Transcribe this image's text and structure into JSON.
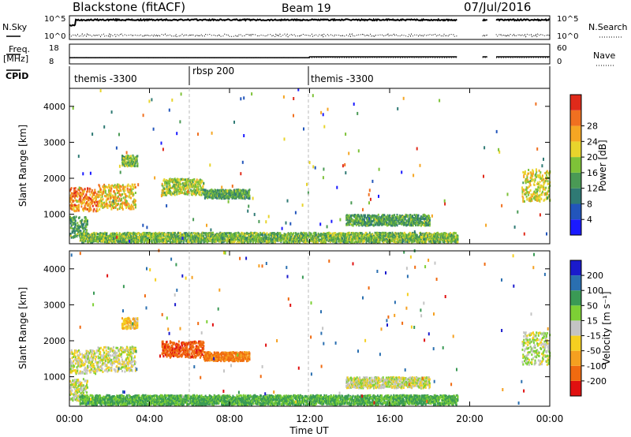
{
  "header": {
    "site": "Blackstone (fitACF)",
    "beam": "Beam 19",
    "date": "07/Jul/2016"
  },
  "top_panels": {
    "nsky_label": "N.Sky",
    "nsearch_label": "N.Search",
    "freq_label_1": "Freq.",
    "freq_label_2": "[MHz]",
    "nave_label": "Nave",
    "cpid_label": "CPID",
    "nsky_ticks": [
      "10^5",
      "10^0"
    ],
    "nsearch_ticks": [
      "10^5",
      "10^0"
    ],
    "freq_ticks": [
      "18",
      "8"
    ],
    "nave_ticks": [
      "60",
      "0"
    ]
  },
  "cpid": [
    {
      "label": "themis -3300",
      "start": 0
    },
    {
      "label": "rbsp 200",
      "start": 6
    },
    {
      "label": "themis -3300",
      "start": 12
    }
  ],
  "x_axis": {
    "label": "Time UT",
    "ticks": [
      "00:00",
      "04:00",
      "08:00",
      "12:00",
      "16:00",
      "20:00",
      "00:00"
    ],
    "range_hours": [
      0,
      24
    ]
  },
  "y_axis": {
    "label": "Slant Range [km]",
    "ticks": [
      "1000",
      "2000",
      "3000",
      "4000"
    ],
    "range_km": [
      180,
      4500
    ]
  },
  "power_scale": {
    "label": "Power [dB]",
    "ticks": [
      "4",
      "8",
      "12",
      "16",
      "20",
      "24",
      "28"
    ],
    "colors": [
      "#1a1aff",
      "#2255bb",
      "#2f7a74",
      "#4a9a55",
      "#7ec238",
      "#e8d42c",
      "#f5a623",
      "#f07020",
      "#e02a1a"
    ]
  },
  "velocity_scale": {
    "label": "Velocity [m s⁻¹]",
    "ticks": [
      "200",
      "100",
      "50",
      "15",
      "-15",
      "-50",
      "-100",
      "-200"
    ],
    "colors": [
      "#1a1acc",
      "#2a6fb0",
      "#3a9a55",
      "#7dd035",
      "#c4c4c4",
      "#f5d020",
      "#f5a020",
      "#f06a10",
      "#e01010"
    ]
  },
  "chart_data": {
    "type": "heatmap",
    "title": "Blackstone (fitACF) Beam 19 07/Jul/2016",
    "x_label": "Time UT",
    "y_label": "Slant Range [km]",
    "xlim_hours": [
      0,
      24
    ],
    "ylim_km": [
      180,
      4500
    ],
    "power_db_range": [
      0,
      30
    ],
    "velocity_range": [
      -250,
      250
    ],
    "data_gaps_hours": [
      [
        19.4,
        20.6
      ],
      [
        20.9,
        21.3
      ]
    ],
    "echo_regions": [
      {
        "name": "band-a",
        "t0": 0.0,
        "t1": 1.4,
        "r0": 1050,
        "r1": 1700,
        "power": 24,
        "velocity": -10
      },
      {
        "name": "band-b",
        "t0": 1.4,
        "t1": 3.3,
        "r0": 1100,
        "r1": 1800,
        "power": 20,
        "velocity": -5
      },
      {
        "name": "band-c",
        "t0": 0.0,
        "t1": 0.9,
        "r0": 300,
        "r1": 900,
        "power": 12,
        "velocity": 0
      },
      {
        "name": "patch-d",
        "t0": 2.6,
        "t1": 3.4,
        "r0": 2300,
        "r1": 2600,
        "power": 14,
        "velocity": -40
      },
      {
        "name": "band-e",
        "t0": 4.6,
        "t1": 6.7,
        "r0": 1500,
        "r1": 1950,
        "power": 16,
        "velocity": -180
      },
      {
        "name": "band-f",
        "t0": 6.7,
        "t1": 9.0,
        "r0": 1400,
        "r1": 1650,
        "power": 12,
        "velocity": -110
      },
      {
        "name": "band-g",
        "t0": 13.8,
        "t1": 18.0,
        "r0": 650,
        "r1": 950,
        "power": 12,
        "velocity": 0
      },
      {
        "name": "band-h",
        "t0": 22.6,
        "t1": 24.0,
        "r0": 1300,
        "r1": 2200,
        "power": 18,
        "velocity": 10
      },
      {
        "name": "ground-scatter",
        "t0": 0.5,
        "t1": 19.4,
        "r0": 180,
        "r1": 450,
        "power": 14,
        "velocity": 60
      }
    ]
  }
}
